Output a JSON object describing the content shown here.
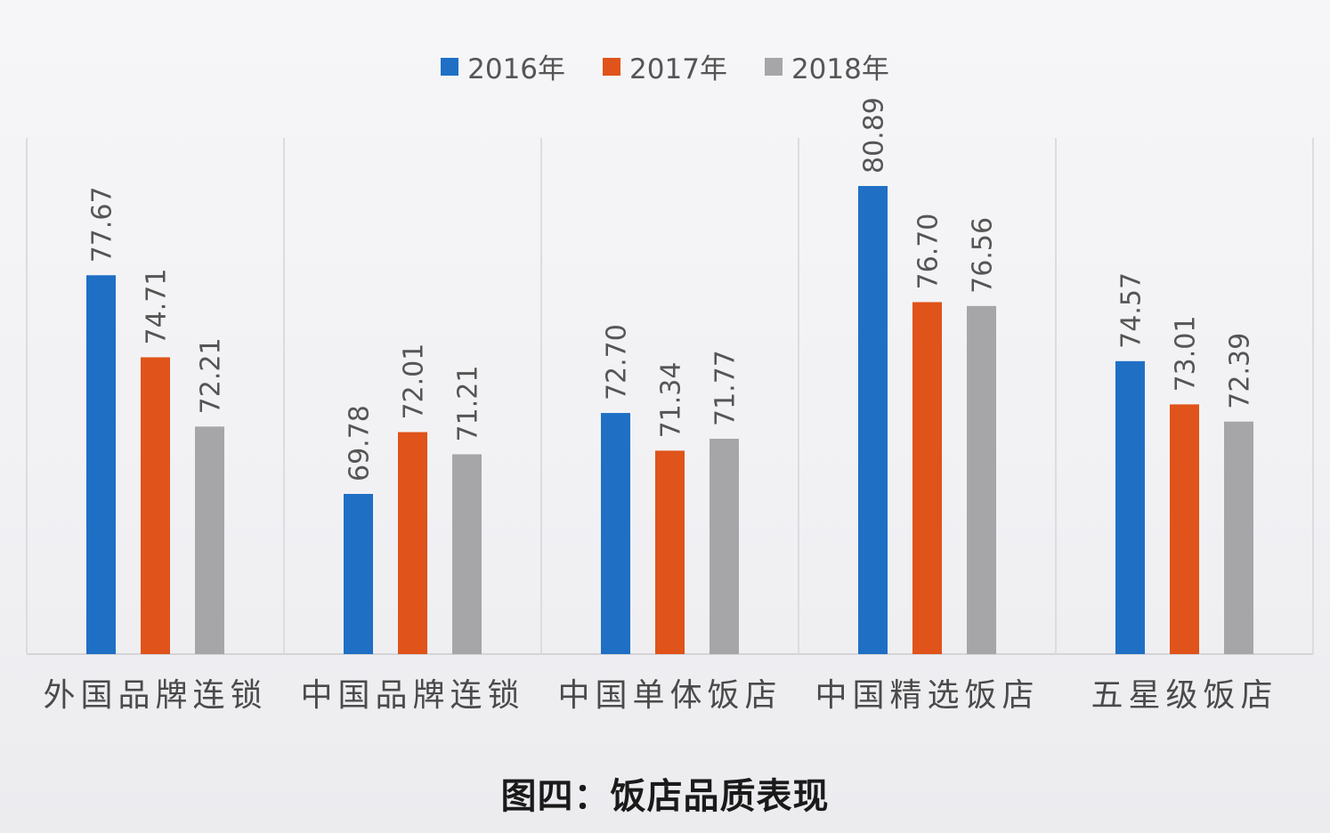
{
  "chart_data": {
    "type": "bar",
    "title": "",
    "caption": "图四：饭店品质表现",
    "xlabel": "",
    "ylabel": "",
    "categories": [
      "外国品牌连锁",
      "中国品牌连锁",
      "中国单体饭店",
      "中国精选饭店",
      "五星级饭店"
    ],
    "series": [
      {
        "name": "2016年",
        "color": "#1f6fc5",
        "values": [
          77.67,
          69.78,
          72.7,
          80.89,
          74.57
        ]
      },
      {
        "name": "2017年",
        "color": "#e0531a",
        "values": [
          74.71,
          72.01,
          71.34,
          76.7,
          73.01
        ]
      },
      {
        "name": "2018年",
        "color": "#a6a6a8",
        "values": [
          72.21,
          71.21,
          71.77,
          76.56,
          72.39
        ]
      }
    ],
    "value_labels": [
      [
        "77.67",
        "69.78",
        "72.70",
        "80.89",
        "74.57"
      ],
      [
        "74.71",
        "72.01",
        "71.34",
        "76.70",
        "73.01"
      ],
      [
        "72.21",
        "71.21",
        "71.77",
        "76.56",
        "72.39"
      ]
    ],
    "ylim": [
      64,
      81.5
    ],
    "legend": "top-center",
    "grid": false,
    "category_separators": true
  }
}
